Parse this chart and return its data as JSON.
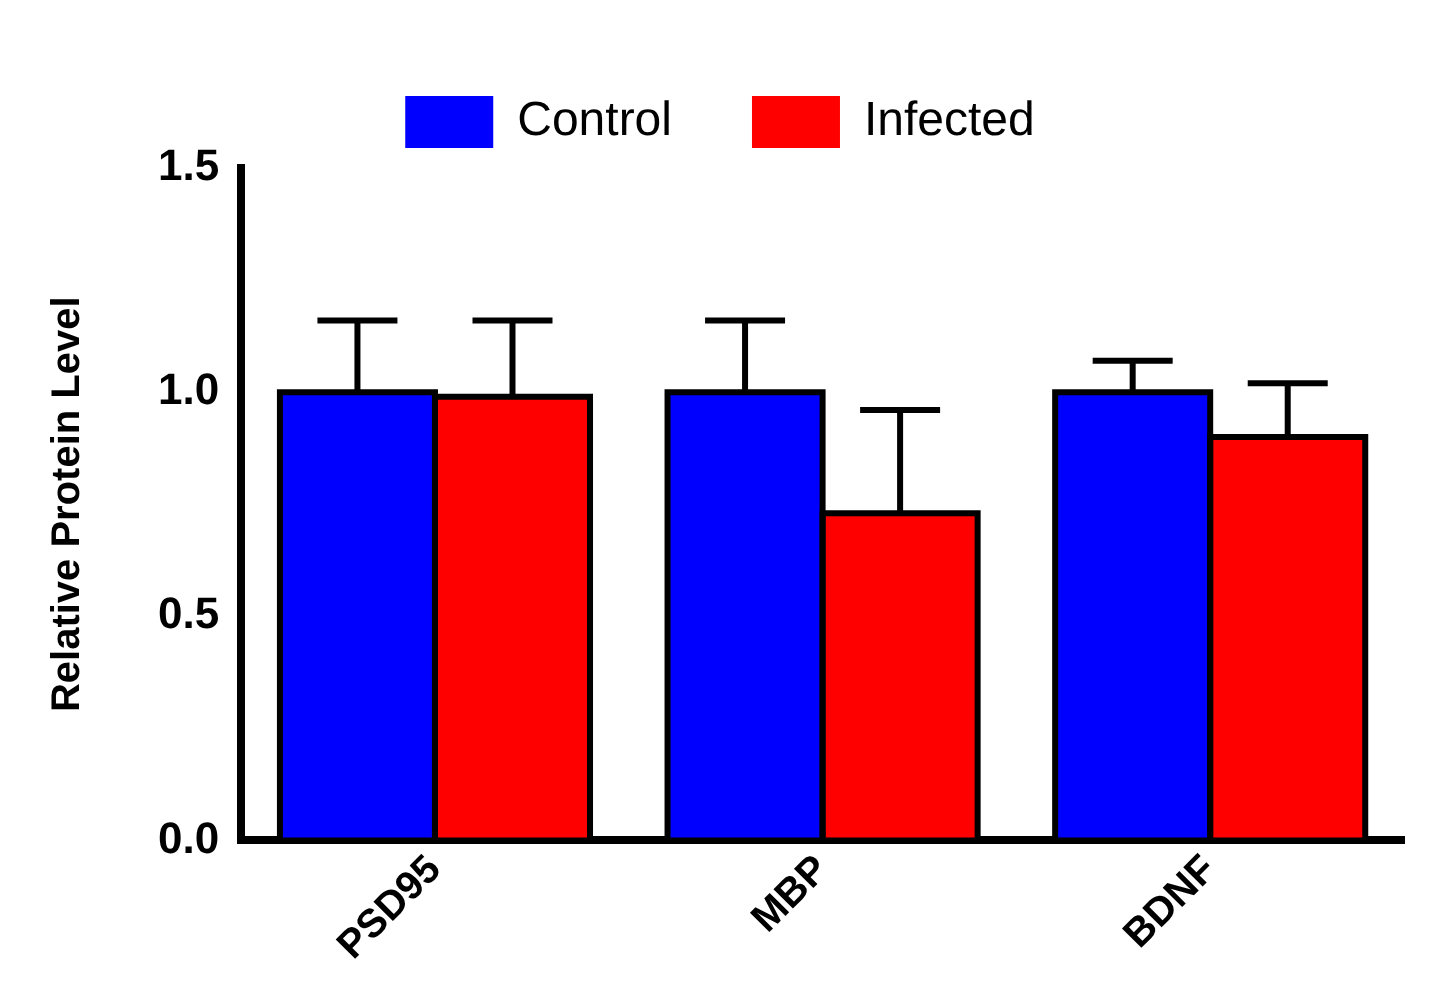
{
  "chart_data": {
    "type": "bar",
    "ylabel": "Relative Protein Level",
    "categories": [
      "PSD95",
      "MBP",
      "BDNF"
    ],
    "series": [
      {
        "name": "Control",
        "color": "#0000ff",
        "values": [
          1.0,
          1.0,
          1.0
        ],
        "errors": [
          0.16,
          0.16,
          0.07
        ]
      },
      {
        "name": "Infected",
        "color": "#ff0000",
        "values": [
          0.99,
          0.73,
          0.9
        ],
        "errors": [
          0.17,
          0.23,
          0.12
        ]
      }
    ],
    "ylim": [
      0,
      1.5
    ],
    "yticks": [
      {
        "value": 0,
        "label": "0.0"
      },
      0.5,
      {
        "value": 1,
        "label": "1.0"
      },
      1.5
    ],
    "grid": false,
    "legend": "top"
  }
}
